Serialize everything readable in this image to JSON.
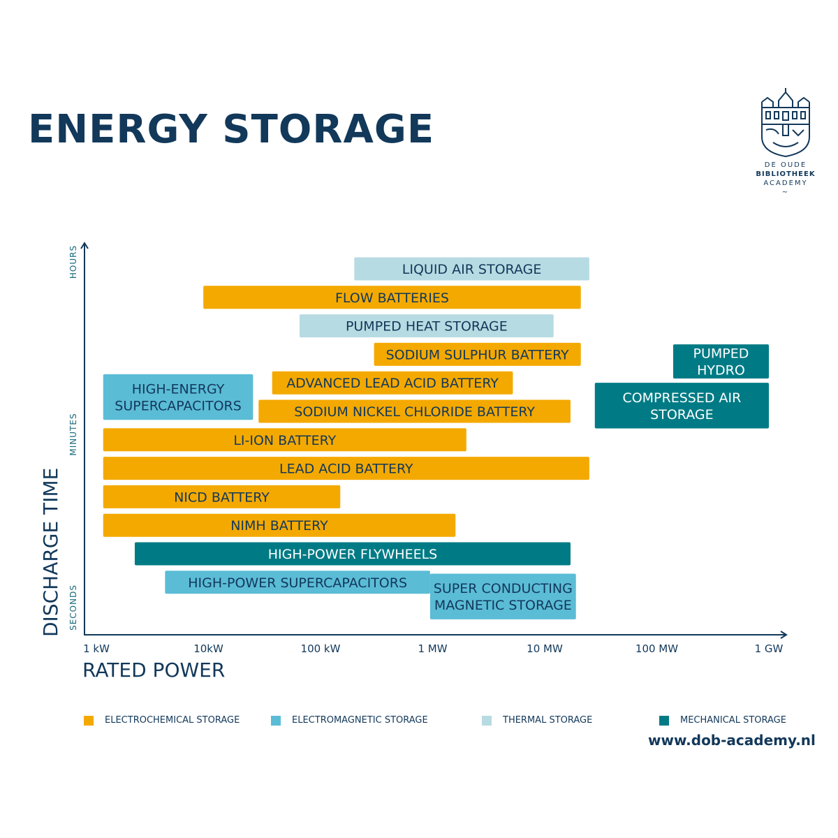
{
  "title": "ENERGY STORAGE",
  "logo": {
    "line1": "DE OUDE",
    "line2": "BIBLIOTHEEK",
    "line3": "ACADEMY"
  },
  "website": "www.dob-academy.nl",
  "colors": {
    "electrochemical": "#f4a900",
    "electromagnetic": "#5bbcd6",
    "thermal": "#b7dbe2",
    "mechanical": "#007b85",
    "axis": "#12385a"
  },
  "legend": [
    {
      "label": "ELECTROCHEMICAL STORAGE",
      "category": "electrochemical"
    },
    {
      "label": "ELECTROMAGNETIC STORAGE",
      "category": "electromagnetic"
    },
    {
      "label": "THERMAL STORAGE",
      "category": "thermal"
    },
    {
      "label": "MECHANICAL STORAGE",
      "category": "mechanical"
    }
  ],
  "chart_data": {
    "type": "bar",
    "orientation": "horizontal-range",
    "xlabel": "RATED POWER",
    "ylabel": "DISCHARGE TIME",
    "x_scale": "log",
    "x_unit": "kW",
    "x_ticks": [
      {
        "label": "1 kW",
        "value": 1
      },
      {
        "label": "10kW",
        "value": 10
      },
      {
        "label": "100 kW",
        "value": 100
      },
      {
        "label": "1 MW",
        "value": 1000
      },
      {
        "label": "10 MW",
        "value": 10000
      },
      {
        "label": "100 MW",
        "value": 100000
      },
      {
        "label": "1 GW",
        "value": 1000000
      }
    ],
    "y_ticks": [
      "SECONDS",
      "MINUTES",
      "HOURS"
    ],
    "series": [
      {
        "name": "LIQUID AIR STORAGE",
        "lines": [
          "LIQUID AIR STORAGE"
        ],
        "category": "thermal",
        "x_min": 200,
        "x_max": 25000,
        "level": 1
      },
      {
        "name": "FLOW BATTERIES",
        "lines": [
          "FLOW BATTERIES"
        ],
        "category": "electrochemical",
        "x_min": 9,
        "x_max": 21000,
        "level": 2
      },
      {
        "name": "PUMPED HEAT STORAGE",
        "lines": [
          "PUMPED HEAT STORAGE"
        ],
        "category": "thermal",
        "x_min": 65,
        "x_max": 12000,
        "level": 3
      },
      {
        "name": "SODIUM SULPHUR BATTERY",
        "lines": [
          "SODIUM SULPHUR BATTERY"
        ],
        "category": "electrochemical",
        "x_min": 300,
        "x_max": 21000,
        "level": 4
      },
      {
        "name": "PUMPED HYDRO",
        "lines": [
          "PUMPED",
          "HYDRO"
        ],
        "category": "mechanical",
        "x_min": 140000,
        "x_max": 1000000,
        "level": 4.25,
        "height": 1.3
      },
      {
        "name": "ADVANCED LEAD ACID BATTERY",
        "lines": [
          "ADVANCED LEAD ACID BATTERY"
        ],
        "category": "electrochemical",
        "x_min": 37,
        "x_max": 5200,
        "level": 5
      },
      {
        "name": "HIGH-ENERGY SUPERCAPACITORS",
        "lines": [
          "HIGH-ENERGY",
          "SUPERCAPACITORS"
        ],
        "category": "electromagnetic",
        "x_min": 1.15,
        "x_max": 25,
        "level": 5.5,
        "height": 1.8
      },
      {
        "name": "COMPRESSED AIR STORAGE",
        "lines": [
          "COMPRESSED AIR",
          "STORAGE"
        ],
        "category": "mechanical",
        "x_min": 28000,
        "x_max": 1000000,
        "level": 5.8,
        "height": 1.8
      },
      {
        "name": "SODIUM NICKEL CHLORIDE BATTERY",
        "lines": [
          "SODIUM NICKEL CHLORIDE BATTERY"
        ],
        "category": "electrochemical",
        "x_min": 28,
        "x_max": 17000,
        "level": 6
      },
      {
        "name": "LI-ION BATTERY",
        "lines": [
          "LI-ION BATTERY"
        ],
        "category": "electrochemical",
        "x_min": 1.15,
        "x_max": 2000,
        "level": 7
      },
      {
        "name": "LEAD ACID BATTERY",
        "lines": [
          "LEAD ACID BATTERY"
        ],
        "category": "electrochemical",
        "x_min": 1.15,
        "x_max": 25000,
        "level": 8
      },
      {
        "name": "NICD BATTERY",
        "lines": [
          "NICD BATTERY"
        ],
        "category": "electrochemical",
        "x_min": 1.15,
        "x_max": 150,
        "level": 9
      },
      {
        "name": "NIMH BATTERY",
        "lines": [
          "NIMH BATTERY"
        ],
        "category": "electrochemical",
        "x_min": 1.15,
        "x_max": 1600,
        "level": 10
      },
      {
        "name": "HIGH-POWER FLYWHEELS",
        "lines": [
          "HIGH-POWER FLYWHEELS"
        ],
        "category": "mechanical",
        "x_min": 2.2,
        "x_max": 17000,
        "level": 11
      },
      {
        "name": "HIGH-POWER SUPERCAPACITORS",
        "lines": [
          "HIGH-POWER SUPERCAPACITORS"
        ],
        "category": "electromagnetic",
        "x_min": 4.1,
        "x_max": 950,
        "level": 12
      },
      {
        "name": "SUPER CONDUCTING MAGNETIC STORAGE",
        "lines": [
          "SUPER CONDUCTING",
          "MAGNETIC STORAGE"
        ],
        "category": "electromagnetic",
        "x_min": 950,
        "x_max": 19000,
        "level": 12.5,
        "height": 1.8
      }
    ]
  }
}
